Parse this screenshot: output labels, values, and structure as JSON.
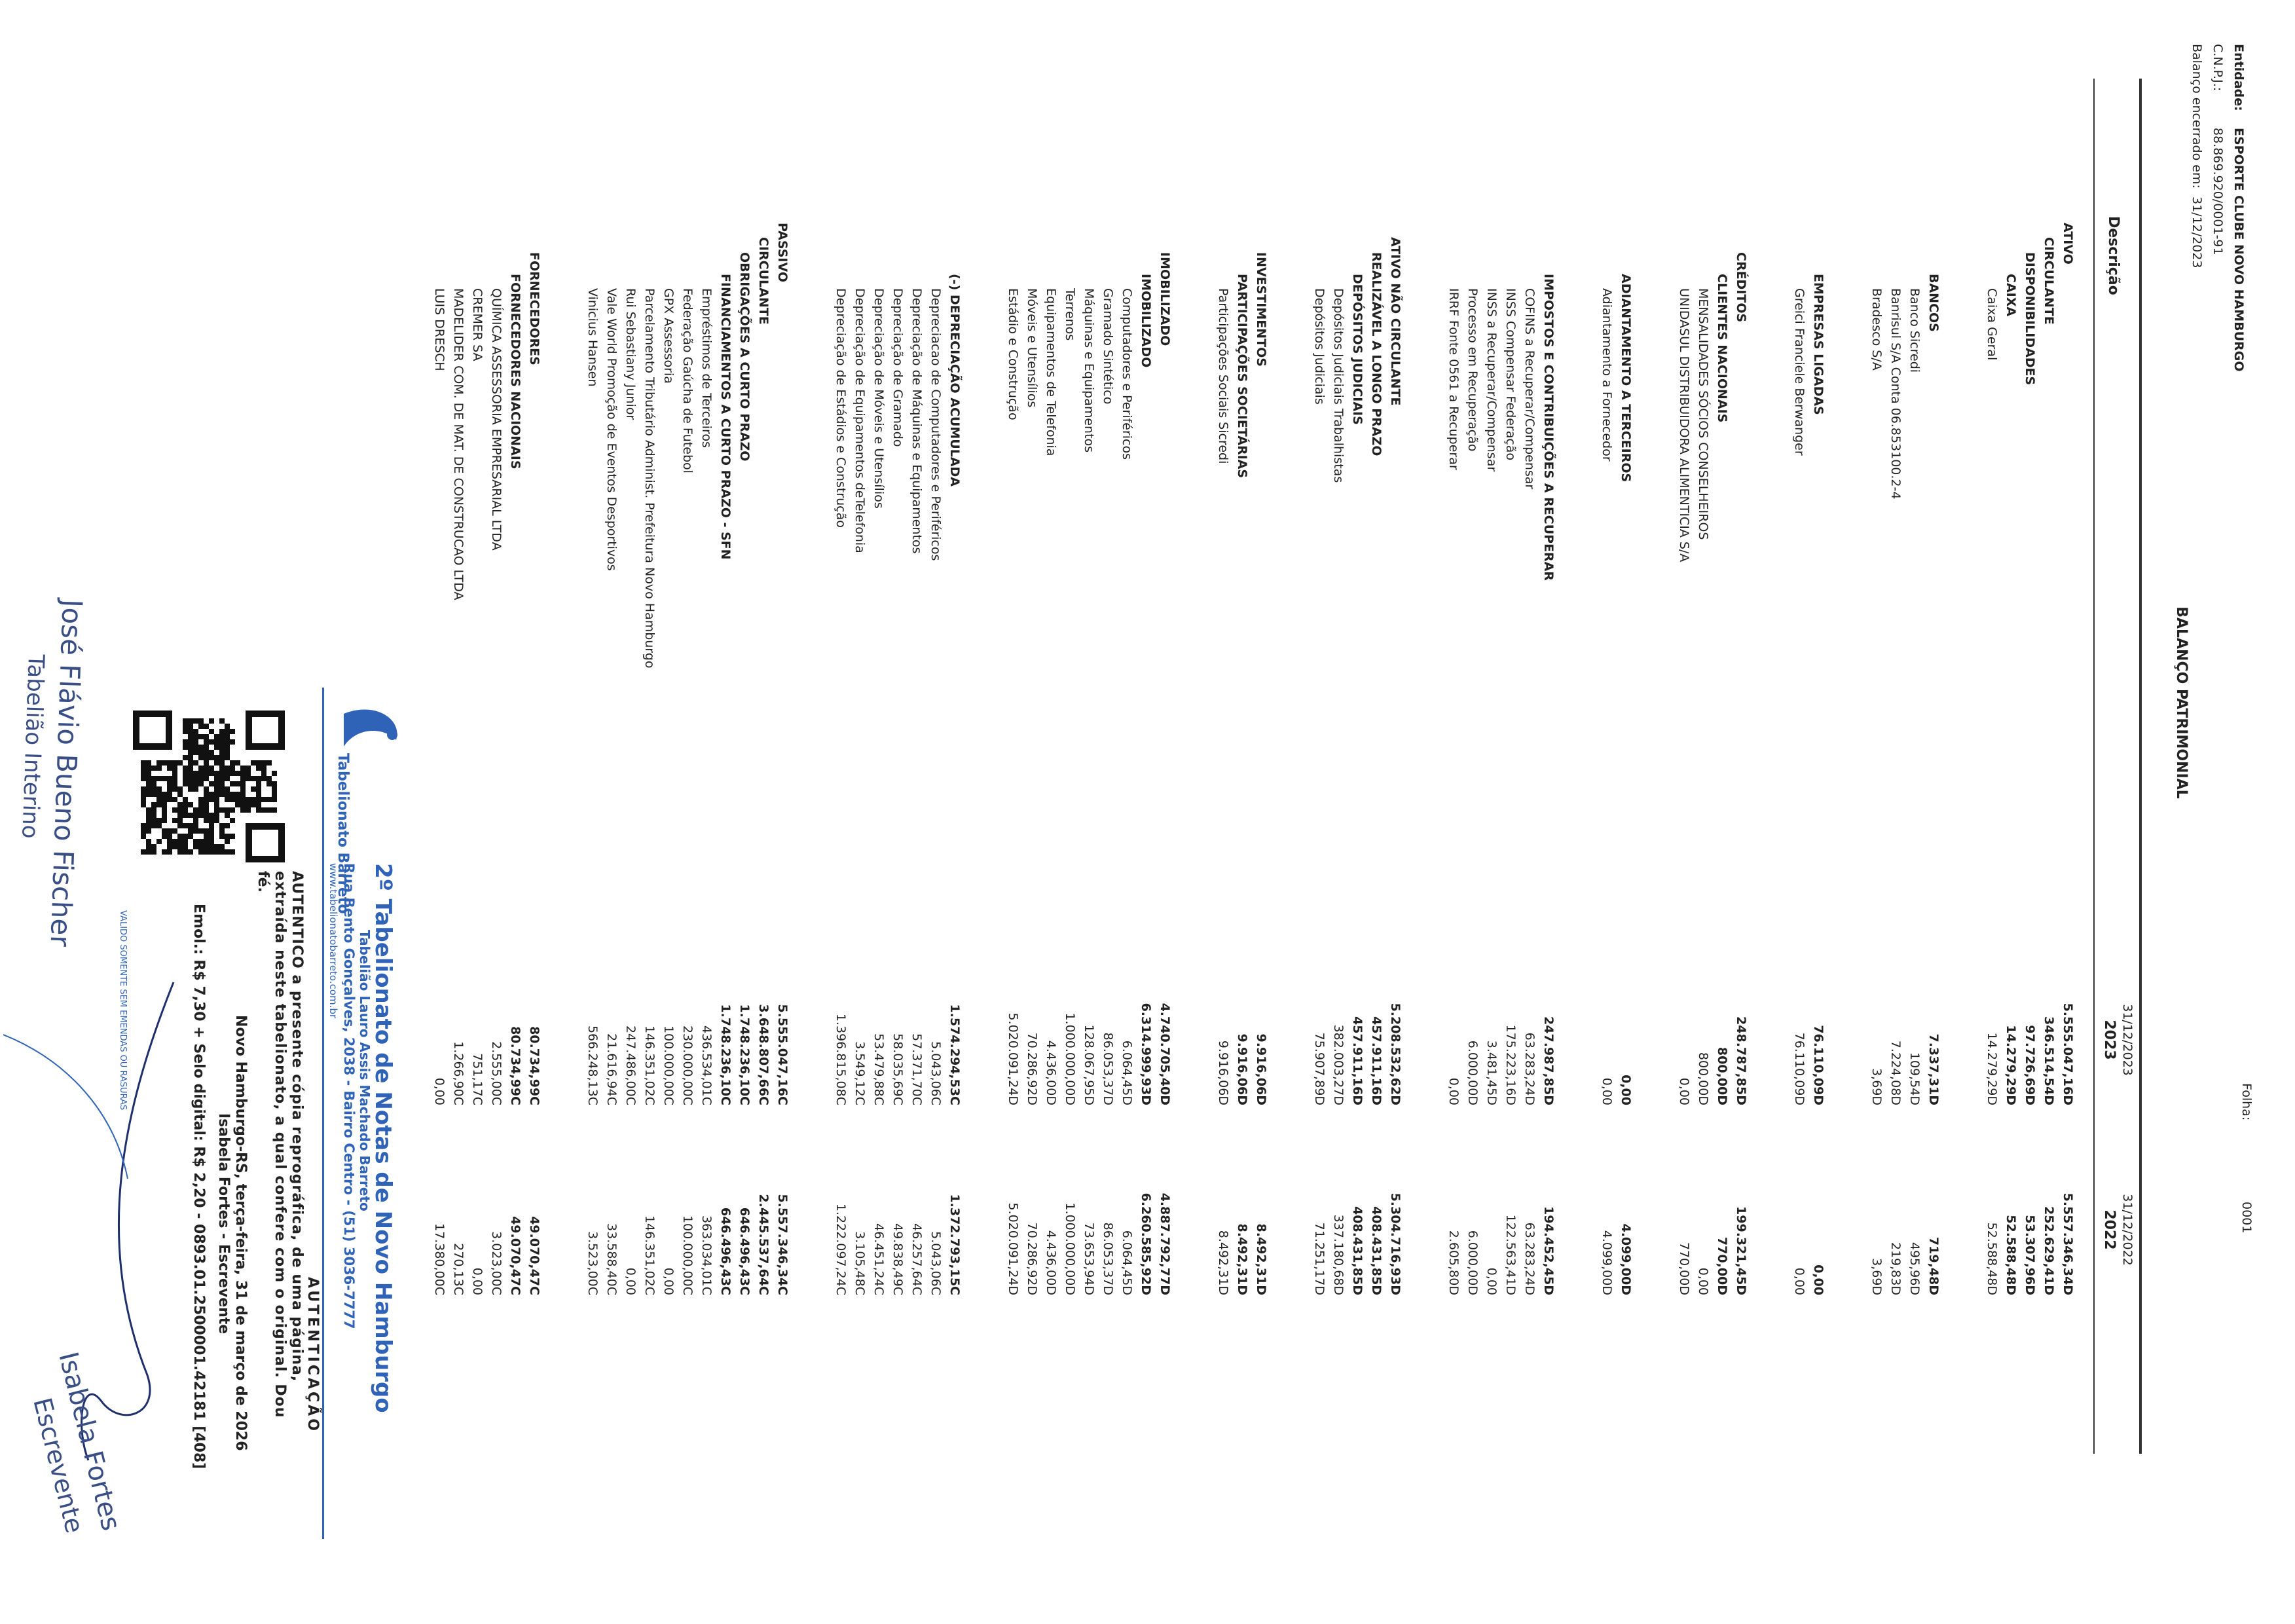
{
  "header": {
    "entity_label": "Entidade:",
    "entity": "ESPORTE CLUBE NOVO HAMBURGO",
    "cnpj_label": "C.N.P.J.:",
    "cnpj": "88.869.920/0001-91",
    "closing_label": "Balanço encerrado em:",
    "closing_date": "31/12/2023",
    "title": "BALANÇO PATRIMONIAL",
    "page_label": "Folha:",
    "page": "0001"
  },
  "table": {
    "columns": [
      {
        "label": "Descrição"
      },
      {
        "label": "2023",
        "date": "31/12/2023"
      },
      {
        "label": "2022",
        "date": "31/12/2022"
      }
    ],
    "rows": [
      [
        "ATIVO",
        "5.555.047,16D",
        "5.557.346,34D"
      ],
      [
        "CIRCULANTE",
        "346.514,54D",
        "252.629,41D"
      ],
      [
        "DISPONIBILIDADES",
        "97.726,69D",
        "53.307,96D"
      ],
      [
        "CAIXA",
        "14.279,29D",
        "52.588,48D"
      ],
      [
        "Caixa Geral",
        "14.279,29D",
        "52.588,48D"
      ],
      [
        "BANCOS",
        "7.337,31D",
        "719,48D"
      ],
      [
        "Banco Sicredi",
        "109,54D",
        "495,96D"
      ],
      [
        "Banrisul S/A Conta 06.853100.2-4",
        "7.224,08D",
        "219,83D"
      ],
      [
        "Bradesco S/A",
        "3,69D",
        "3,69D"
      ],
      [
        "EMPRESAS LIGADAS",
        "76.110,09D",
        "0,00"
      ],
      [
        "Greici Franciele Berwanger",
        "76.110,09D",
        "0,00"
      ],
      [
        "CRÉDITOS",
        "248.787,85D",
        "199.321,45D"
      ],
      [
        "CLIENTES NACIONAIS",
        "800,00D",
        "770,00D"
      ],
      [
        "MENSALIDADES SÓCIOS CONSELHEIROS",
        "800,00D",
        "0,00"
      ],
      [
        "UNIDASUL DISTRIBUIDORA ALIMENTICIA S/A",
        "0,00",
        "770,00D"
      ],
      [
        "ADIANTAMENTO A TERCEIROS",
        "0,00",
        "4.099,00D"
      ],
      [
        "Adiantamento a Fornecedor",
        "0,00",
        "4.099,00D"
      ],
      [
        "IMPOSTOS E CONTRIBUIÇÕES A RECUPERAR",
        "247.987,85D",
        "194.452,45D"
      ],
      [
        "COFINS a Recuperar/Compensar",
        "63.283,24D",
        "63.283,24D"
      ],
      [
        "INSS Compensar Federação",
        "175.223,16D",
        "122.563,41D"
      ],
      [
        "INSS a Recuperar/Compensar",
        "3.481,45D",
        "0,00"
      ],
      [
        "Processo em Recuperação",
        "6.000,00D",
        "6.000,00D"
      ],
      [
        "IRRF Fonte 0561 a Recuperar",
        "0,00",
        "2.605,80D"
      ],
      [
        "ATIVO NÃO CIRCULANTE",
        "5.208.532,62D",
        "5.304.716,93D"
      ],
      [
        "REALIZÁVEL A LONGO PRAZO",
        "457.911,16D",
        "408.431,85D"
      ],
      [
        "DEPÓSITOS JUDICIAIS",
        "457.911,16D",
        "408.431,85D"
      ],
      [
        "Depósitos Judiciais Trabalhistas",
        "382.003,27D",
        "337.180,68D"
      ],
      [
        "Depósitos Judiciais",
        "75.907,89D",
        "71.251,17D"
      ],
      [
        "INVESTIMENTOS",
        "9.916,06D",
        "8.492,31D"
      ],
      [
        "PARTICIPAÇÕES SOCIETÁRIAS",
        "9.916,06D",
        "8.492,31D"
      ],
      [
        "Participações Sociais Sicredi",
        "9.916,06D",
        "8.492,31D"
      ],
      [
        "IMOBILIZADO",
        "4.740.705,40D",
        "4.887.792,77D"
      ],
      [
        "IMOBILIZADO",
        "6.314.999,93D",
        "6.260.585,92D"
      ],
      [
        "Computadores e Periféricos",
        "6.064,45D",
        "6.064,45D"
      ],
      [
        "Gramado Sintético",
        "86.053,37D",
        "86.053,37D"
      ],
      [
        "Máquinas e Equipamentos",
        "128.067,95D",
        "73.653,94D"
      ],
      [
        "Terrenos",
        "1.000.000,00D",
        "1.000.000,00D"
      ],
      [
        "Equipamentos de Telefonia",
        "4.436,00D",
        "4.436,00D"
      ],
      [
        "Móveis e Utensílios",
        "70.286,92D",
        "70.286,92D"
      ],
      [
        "Estádio e Construção",
        "5.020.091,24D",
        "5.020.091,24D"
      ],
      [
        "(-) DEPRECIAÇÃO ACUMULADA",
        "1.574.294,53C",
        "1.372.793,15C"
      ],
      [
        "Depreciacao de Computadores e Periféricos",
        "5.043,06C",
        "5.043,06C"
      ],
      [
        "Depreciação de Máquinas e Equipamentos",
        "57.371,70C",
        "46.257,64C"
      ],
      [
        "Depreciação de Gramado",
        "58.035,69C",
        "49.838,49C"
      ],
      [
        "Depreciação de Móveis e Utensílios",
        "53.479,88C",
        "46.451,24C"
      ],
      [
        "Depreciação de Equipamentos deTelefonia",
        "3.549,12C",
        "3.105,48C"
      ],
      [
        "Depreciação de Estádios e Construção",
        "1.396.815,08C",
        "1.222.097,24C"
      ],
      [
        "PASSIVO",
        "5.555.047,16C",
        "5.557.346,34C"
      ],
      [
        "CIRCULANTE",
        "3.648.807,66C",
        "2.445.537,64C"
      ],
      [
        "OBRIGAÇÕES A CURTO PRAZO",
        "1.748.236,10C",
        "646.496,43C"
      ],
      [
        "FINANCIAMENTOS A CURTO PRAZO - SFN",
        "1.748.236,10C",
        "646.496,43C"
      ],
      [
        "Empréstimos de Terceiros",
        "436.534,01C",
        "363.034,01C"
      ],
      [
        "Federação Gaúcha de Futebol",
        "230.000,00C",
        "100.000,00C"
      ],
      [
        "GPX Assessoria",
        "100.000,00C",
        "0,00"
      ],
      [
        "Parcelamento Tributário Administ. Prefeitura Novo Hamburgo",
        "146.351,02C",
        "146.351,02C"
      ],
      [
        "Rui Sebastiany Junior",
        "247.486,00C",
        "0,00"
      ],
      [
        "Vale World Promoção de Eventos Desportivos",
        "21.616,94C",
        "33.588,40C"
      ],
      [
        "Vinicius Hansen",
        "566.248,13C",
        "3.523,00C"
      ],
      [
        "FORNECEDORES",
        "80.734,99C",
        "49.070,47C"
      ],
      [
        "FORNECEDORES NACIONAIS",
        "80.734,99C",
        "49.070,47C"
      ],
      [
        "QUÍMICA ASSESSORIA EMPRESARIAL LTDA",
        "2.555,00C",
        "3.023,00C"
      ],
      [
        "CREMER SA",
        "751,17C",
        "0,00"
      ],
      [
        "MADELIDER COM. DE MAT. DE CONSTRUCAO LTDA",
        "1.266,90C",
        "270,13C"
      ],
      [
        "LUIS DRESCH",
        "0,00",
        "17.380,00C"
      ]
    ]
  },
  "stamp": {
    "logo": "Tabelionato Barreto",
    "office": "2º Tabelionato de Notas de Novo Hamburgo",
    "notary": "Tabelião Lauro Assis Machado Barreto",
    "address": "Rua Bento Gonçalves, 2038 - Bairro Centro - (51) 3036-7777",
    "website": "www.tabelionatobarreto.com.br",
    "heading": "AUTENTICAÇÃO",
    "body_1": "AUTENTICO a presente cópia reprográfica, de uma página,",
    "body_2": "extraída neste tabelionato, a qual confere com o original. Dou",
    "body_3": "fé.",
    "place_date": "Novo Hamburgo-RS, terça-feira, 31 de março de 2026",
    "clerk_line": "Isabela Fortes - Escrevente",
    "fees": "Emol.: R$ 7,30 + Selo digital: R$ 2,20 - 0893.01.2500001.42181 [408]",
    "validity": "VALIDO SOMENTE SEM EMENDAS OU RASURAS"
  },
  "signatures": [
    {
      "name": "José Flávio Bueno Fischer",
      "role": "Tabelião Interino"
    },
    {
      "name": "Isabela Fortes",
      "role": "Escrevente"
    }
  ]
}
